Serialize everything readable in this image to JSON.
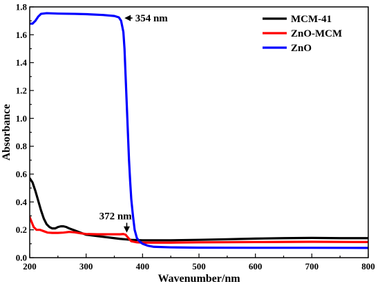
{
  "chart_data": {
    "type": "line",
    "xlabel": "Wavenumber/nm",
    "ylabel": "Absorbance",
    "xlim": [
      200,
      800
    ],
    "ylim": [
      0.0,
      1.8
    ],
    "xticks": [
      200,
      300,
      400,
      500,
      600,
      700,
      800
    ],
    "xtick_labels": [
      "200",
      "300",
      "400",
      "500",
      "600",
      "700",
      "800"
    ],
    "yticks": [
      0.0,
      0.2,
      0.4,
      0.6,
      0.8,
      1.0,
      1.2,
      1.4,
      1.6,
      1.8
    ],
    "ytick_labels": [
      "0.0",
      "0.2",
      "0.4",
      "0.6",
      "0.8",
      "1.0",
      "1.2",
      "1.4",
      "1.6",
      "1.8"
    ],
    "grid": false,
    "legend": "top-right",
    "series": [
      {
        "name": "MCM-41",
        "color": "#000000",
        "points": [
          [
            200,
            0.57
          ],
          [
            205,
            0.54
          ],
          [
            210,
            0.48
          ],
          [
            215,
            0.41
          ],
          [
            220,
            0.34
          ],
          [
            225,
            0.28
          ],
          [
            230,
            0.24
          ],
          [
            235,
            0.22
          ],
          [
            240,
            0.21
          ],
          [
            245,
            0.21
          ],
          [
            250,
            0.22
          ],
          [
            255,
            0.225
          ],
          [
            260,
            0.225
          ],
          [
            265,
            0.22
          ],
          [
            270,
            0.21
          ],
          [
            280,
            0.195
          ],
          [
            290,
            0.18
          ],
          [
            300,
            0.165
          ],
          [
            320,
            0.155
          ],
          [
            340,
            0.145
          ],
          [
            360,
            0.135
          ],
          [
            380,
            0.128
          ],
          [
            400,
            0.125
          ],
          [
            450,
            0.125
          ],
          [
            500,
            0.128
          ],
          [
            550,
            0.132
          ],
          [
            600,
            0.137
          ],
          [
            650,
            0.14
          ],
          [
            700,
            0.142
          ],
          [
            750,
            0.14
          ],
          [
            800,
            0.14
          ]
        ]
      },
      {
        "name": "ZnO-MCM",
        "color": "#ff0000",
        "points": [
          [
            200,
            0.29
          ],
          [
            203,
            0.26
          ],
          [
            207,
            0.22
          ],
          [
            212,
            0.2
          ],
          [
            218,
            0.2
          ],
          [
            225,
            0.19
          ],
          [
            232,
            0.18
          ],
          [
            240,
            0.178
          ],
          [
            250,
            0.178
          ],
          [
            260,
            0.18
          ],
          [
            270,
            0.185
          ],
          [
            280,
            0.182
          ],
          [
            290,
            0.175
          ],
          [
            300,
            0.17
          ],
          [
            320,
            0.168
          ],
          [
            340,
            0.168
          ],
          [
            360,
            0.168
          ],
          [
            366,
            0.17
          ],
          [
            370,
            0.165
          ],
          [
            375,
            0.14
          ],
          [
            380,
            0.118
          ],
          [
            390,
            0.11
          ],
          [
            400,
            0.108
          ],
          [
            450,
            0.108
          ],
          [
            500,
            0.11
          ],
          [
            600,
            0.112
          ],
          [
            700,
            0.114
          ],
          [
            800,
            0.112
          ]
        ]
      },
      {
        "name": "ZnO",
        "color": "#0000ff",
        "points": [
          [
            200,
            1.68
          ],
          [
            205,
            1.68
          ],
          [
            210,
            1.7
          ],
          [
            215,
            1.73
          ],
          [
            220,
            1.75
          ],
          [
            230,
            1.755
          ],
          [
            250,
            1.752
          ],
          [
            280,
            1.75
          ],
          [
            300,
            1.748
          ],
          [
            330,
            1.742
          ],
          [
            350,
            1.735
          ],
          [
            358,
            1.725
          ],
          [
            362,
            1.7
          ],
          [
            366,
            1.62
          ],
          [
            368,
            1.5
          ],
          [
            370,
            1.3
          ],
          [
            372,
            1.1
          ],
          [
            374,
            0.9
          ],
          [
            376,
            0.7
          ],
          [
            378,
            0.55
          ],
          [
            380,
            0.42
          ],
          [
            383,
            0.3
          ],
          [
            386,
            0.2
          ],
          [
            390,
            0.14
          ],
          [
            395,
            0.115
          ],
          [
            400,
            0.1
          ],
          [
            410,
            0.085
          ],
          [
            420,
            0.078
          ],
          [
            450,
            0.074
          ],
          [
            500,
            0.072
          ],
          [
            600,
            0.071
          ],
          [
            700,
            0.071
          ],
          [
            800,
            0.07
          ]
        ]
      }
    ],
    "annotations": [
      {
        "label": "354 nm",
        "arrow_tip": [
          368,
          1.72
        ],
        "text_anchor": [
          387,
          1.72
        ]
      },
      {
        "label": "372 nm",
        "arrow_tip": [
          372,
          0.18
        ],
        "text_anchor": [
          352,
          0.3
        ]
      }
    ]
  }
}
